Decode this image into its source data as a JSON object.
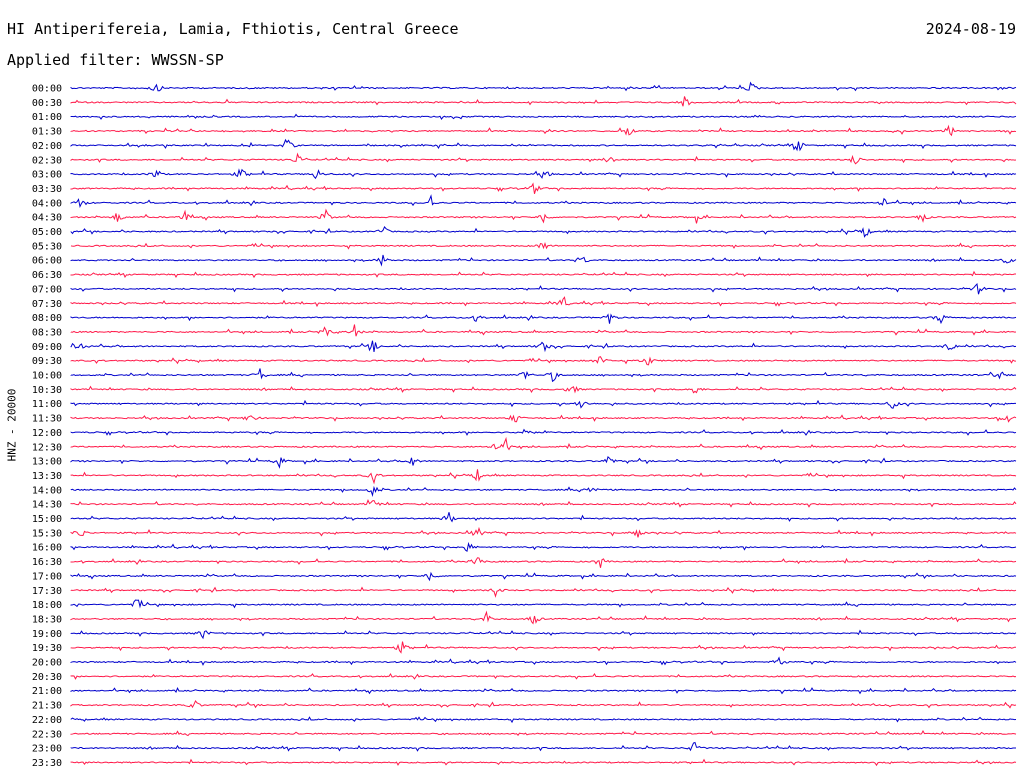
{
  "header": {
    "title": "HI Antiperifereia, Lamia, Fthiotis, Central Greece",
    "date": "2024-08-19",
    "filter": "Applied filter: WWSSN-SP"
  },
  "channel_label": "HNZ - 20000",
  "colors": {
    "even_trace": "#0000cc",
    "odd_trace": "#ff1a4a",
    "background": "#ffffff",
    "text": "#000000"
  },
  "chart_data": {
    "type": "line",
    "title": "",
    "ylabel": "HNZ - 20000",
    "xlabel": "",
    "grid": false,
    "rows": [
      {
        "label": "00:00",
        "events": [
          0.09,
          0.72
        ]
      },
      {
        "label": "00:30",
        "events": [
          0.65
        ]
      },
      {
        "label": "01:00",
        "events": []
      },
      {
        "label": "01:30",
        "events": [
          0.59,
          0.93
        ]
      },
      {
        "label": "02:00",
        "events": [
          0.23,
          0.77
        ]
      },
      {
        "label": "02:30",
        "events": [
          0.24,
          0.57,
          0.83
        ]
      },
      {
        "label": "03:00",
        "events": [
          0.09,
          0.18,
          0.26,
          0.5
        ]
      },
      {
        "label": "03:30",
        "events": [
          0.49
        ]
      },
      {
        "label": "04:00",
        "events": [
          0.01,
          0.38,
          0.86
        ]
      },
      {
        "label": "04:30",
        "events": [
          0.05,
          0.12,
          0.27,
          0.5,
          0.66,
          0.9
        ]
      },
      {
        "label": "05:00",
        "events": [
          0.33,
          0.84
        ]
      },
      {
        "label": "05:30",
        "events": [
          0.5
        ]
      },
      {
        "label": "06:00",
        "events": [
          0.33,
          0.54,
          0.99
        ]
      },
      {
        "label": "06:30",
        "events": []
      },
      {
        "label": "07:00",
        "events": [
          0.96
        ]
      },
      {
        "label": "07:30",
        "events": [
          0.52
        ]
      },
      {
        "label": "08:00",
        "events": [
          0.43,
          0.57,
          0.92
        ]
      },
      {
        "label": "08:30",
        "events": [
          0.27,
          0.3
        ]
      },
      {
        "label": "09:00",
        "events": [
          0.01,
          0.32,
          0.5,
          0.93
        ]
      },
      {
        "label": "09:30",
        "events": [
          0.56,
          0.61
        ]
      },
      {
        "label": "10:00",
        "events": [
          0.2,
          0.48,
          0.51,
          0.98
        ]
      },
      {
        "label": "10:30",
        "events": [
          0.53,
          0.66
        ]
      },
      {
        "label": "11:00",
        "events": [
          0.54,
          0.87
        ]
      },
      {
        "label": "11:30",
        "events": [
          0.19,
          0.47,
          0.99
        ]
      },
      {
        "label": "12:00",
        "events": [
          0.48
        ]
      },
      {
        "label": "12:30",
        "events": [
          0.45,
          0.46
        ]
      },
      {
        "label": "13:00",
        "events": [
          0.22,
          0.36,
          0.57
        ]
      },
      {
        "label": "13:30",
        "events": [
          0.32,
          0.43
        ]
      },
      {
        "label": "14:00",
        "events": [
          0.32,
          0.55
        ]
      },
      {
        "label": "14:30",
        "events": [
          0.32
        ]
      },
      {
        "label": "15:00",
        "events": [
          0.4
        ]
      },
      {
        "label": "15:30",
        "events": [
          0.01,
          0.43,
          0.6
        ]
      },
      {
        "label": "16:00",
        "events": [
          0.42
        ]
      },
      {
        "label": "16:30",
        "events": [
          0.43,
          0.56
        ]
      },
      {
        "label": "17:00",
        "events": [
          0.38
        ]
      },
      {
        "label": "17:30",
        "events": [
          0.45
        ]
      },
      {
        "label": "18:00",
        "events": [
          0.07
        ]
      },
      {
        "label": "18:30",
        "events": [
          0.44,
          0.49
        ]
      },
      {
        "label": "19:00",
        "events": [
          0.14
        ]
      },
      {
        "label": "19:30",
        "events": [
          0.35
        ]
      },
      {
        "label": "20:00",
        "events": [
          0.75
        ]
      },
      {
        "label": "20:30",
        "events": []
      },
      {
        "label": "21:00",
        "events": []
      },
      {
        "label": "21:30",
        "events": [
          0.13
        ]
      },
      {
        "label": "22:00",
        "events": []
      },
      {
        "label": "22:30",
        "events": []
      },
      {
        "label": "23:00",
        "events": [
          0.66
        ]
      },
      {
        "label": "23:30",
        "events": []
      }
    ]
  }
}
